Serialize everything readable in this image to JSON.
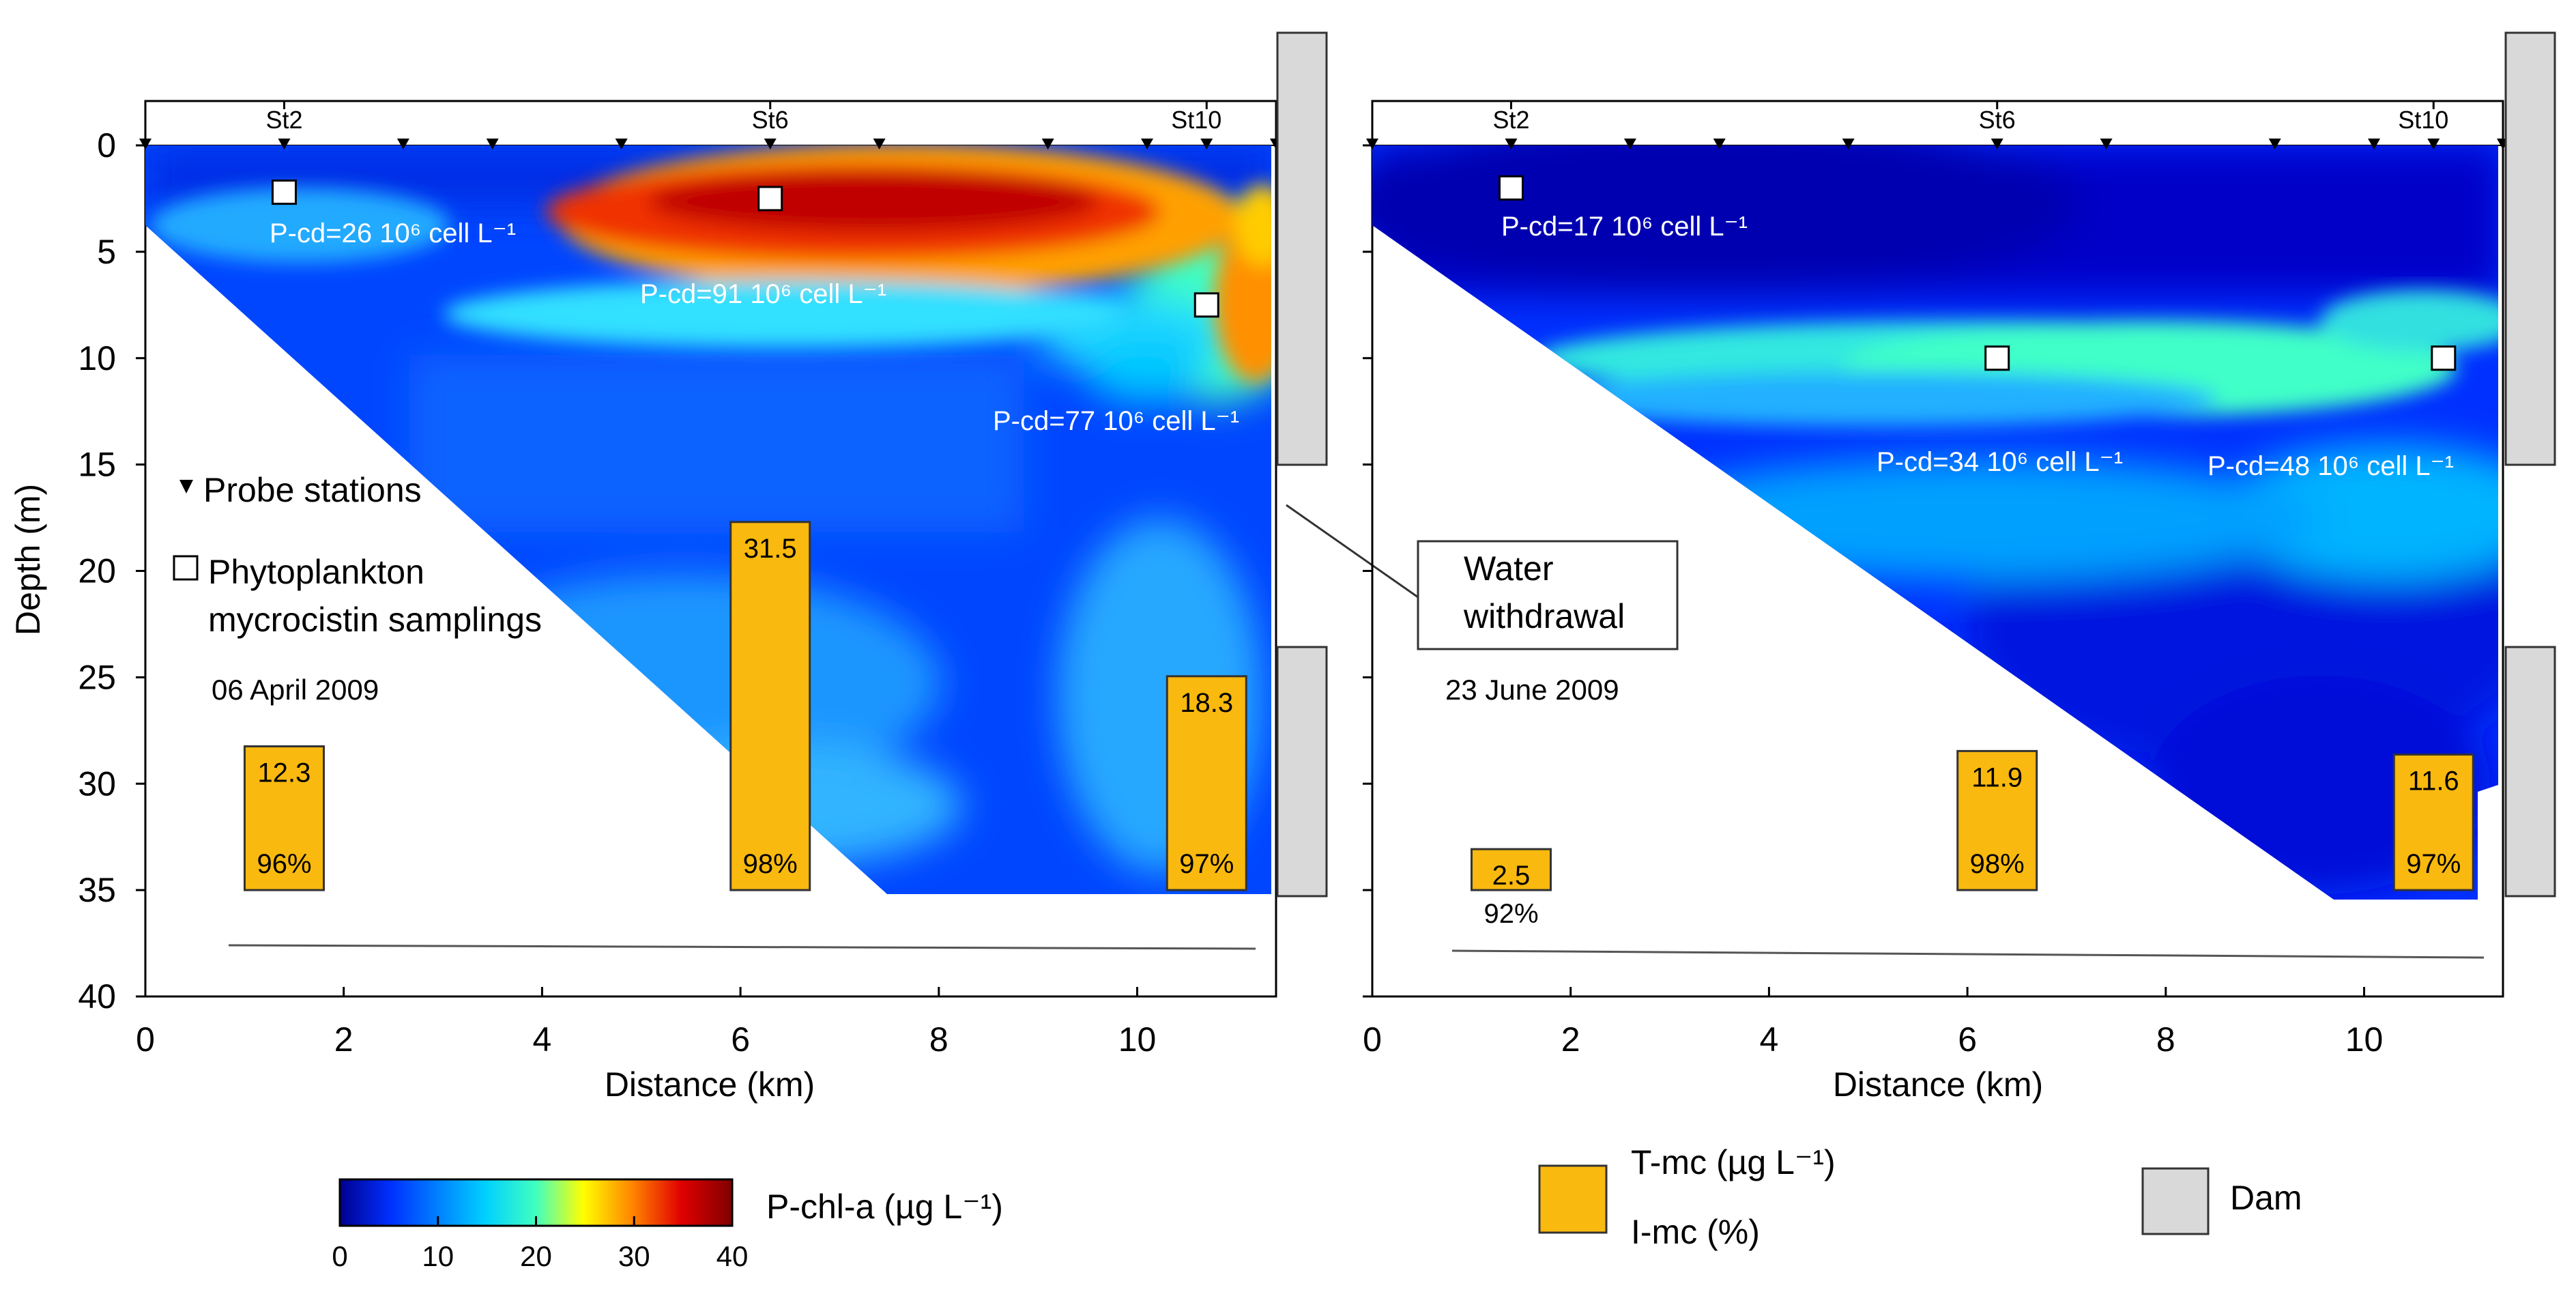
{
  "chart_data": [
    {
      "type": "heatmap",
      "panel": "left",
      "date": "06 April 2009",
      "xlabel": "Distance (km)",
      "ylabel": "Depth (m)",
      "xlim": [
        0,
        11.4
      ],
      "ylim": [
        0,
        40
      ],
      "x_ticks": [
        "0",
        "2",
        "4",
        "6",
        "8",
        "10"
      ],
      "y_ticks": [
        "0",
        "5",
        "10",
        "15",
        "20",
        "25",
        "30",
        "35",
        "40"
      ],
      "stations": [
        {
          "name": "St2",
          "x": 1.4
        },
        {
          "name": "St6",
          "x": 6.3
        },
        {
          "name": "St10",
          "x": 10.7
        }
      ],
      "probe_stations_x": [
        0,
        1.4,
        2.6,
        3.5,
        4.8,
        6.3,
        7.4,
        9.1,
        10.1,
        10.7,
        11.4
      ],
      "samplings": [
        {
          "x": 1.4,
          "depth": 2.2,
          "label": "P-cd=26 10⁶ cell L⁻¹"
        },
        {
          "x": 6.3,
          "depth": 2.5,
          "label": "P-cd=91 10⁶ cell L⁻¹"
        },
        {
          "x": 10.7,
          "depth": 7.5,
          "label": "P-cd=77 10⁶ cell L⁻¹"
        }
      ],
      "toxins": [
        {
          "x": 1.4,
          "tmc": 12.3,
          "tmc_label": "12.3",
          "imc_label": "96%"
        },
        {
          "x": 6.3,
          "tmc": 31.5,
          "tmc_label": "31.5",
          "imc_label": "98%"
        },
        {
          "x": 10.7,
          "tmc": 18.3,
          "tmc_label": "18.3",
          "imc_label": "97%"
        }
      ]
    },
    {
      "type": "heatmap",
      "panel": "right",
      "date": "23 June 2009",
      "xlabel": "Distance (km)",
      "ylabel": "",
      "xlim": [
        0,
        11.4
      ],
      "ylim": [
        0,
        40
      ],
      "x_ticks": [
        "0",
        "2",
        "4",
        "6",
        "8",
        "10"
      ],
      "stations": [
        {
          "name": "St2",
          "x": 1.4
        },
        {
          "name": "St6",
          "x": 6.3
        },
        {
          "name": "St10",
          "x": 10.7
        }
      ],
      "probe_stations_x": [
        0,
        1.4,
        2.6,
        3.5,
        4.8,
        6.3,
        7.4,
        9.1,
        10.1,
        10.7,
        11.4
      ],
      "samplings": [
        {
          "x": 1.4,
          "depth": 2.0,
          "label": "P-cd=17 10⁶ cell L⁻¹"
        },
        {
          "x": 6.3,
          "depth": 10.0,
          "label": "P-cd=34 10⁶ cell L⁻¹"
        },
        {
          "x": 10.8,
          "depth": 10.0,
          "label": "P-cd=48 10⁶ cell L⁻¹"
        }
      ],
      "toxins": [
        {
          "x": 1.4,
          "tmc": 2.5,
          "tmc_label": "2.5",
          "imc_label": "92%"
        },
        {
          "x": 6.3,
          "tmc": 11.9,
          "tmc_label": "11.9",
          "imc_label": "98%"
        },
        {
          "x": 10.7,
          "tmc": 11.6,
          "tmc_label": "11.6",
          "imc_label": "97%"
        }
      ]
    }
  ],
  "legend": {
    "probe_stations": "Probe stations",
    "phyto_line1": "Phytoplankton",
    "phyto_line2": "mycrocistin samplings",
    "water_line1": "Water",
    "water_line2": "withdrawal",
    "colorbar_title": "P-chl-a (µg L⁻¹)",
    "colorbar_ticks": [
      "0",
      "10",
      "20",
      "30",
      "40"
    ],
    "tmc_label": "T-mc (µg L⁻¹)",
    "imc_label": "I-mc (%)",
    "dam_label": "Dam"
  },
  "colors": {
    "toxin_bar": "#f9b90e",
    "dam": "#d9d9d9",
    "ramp": [
      "#00008f",
      "#0040ff",
      "#00c0ff",
      "#40ffc0",
      "#ffff00",
      "#ff8000",
      "#e00000",
      "#800000"
    ]
  }
}
